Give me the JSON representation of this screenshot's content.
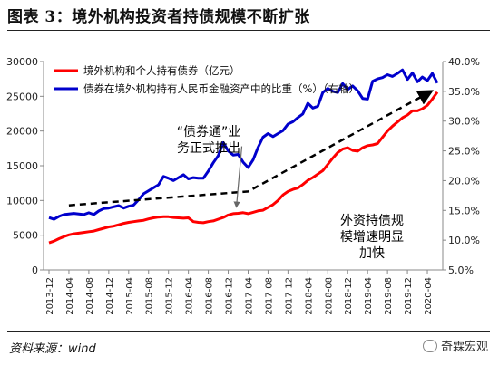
{
  "header": {
    "title": "图表 3：境外机构投资者持债规模不断扩张"
  },
  "footer": {
    "source": "资料来源：wind",
    "brand": "奇霖宏观"
  },
  "chart_data": {
    "type": "line",
    "x": [
      "2013-12",
      "2014-01",
      "2014-02",
      "2014-03",
      "2014-04",
      "2014-05",
      "2014-06",
      "2014-07",
      "2014-08",
      "2014-09",
      "2014-10",
      "2014-11",
      "2014-12",
      "2015-01",
      "2015-02",
      "2015-03",
      "2015-04",
      "2015-05",
      "2015-06",
      "2015-07",
      "2015-08",
      "2015-09",
      "2015-10",
      "2015-11",
      "2015-12",
      "2016-01",
      "2016-02",
      "2016-03",
      "2016-04",
      "2016-05",
      "2016-06",
      "2016-07",
      "2016-08",
      "2016-09",
      "2016-10",
      "2016-11",
      "2016-12",
      "2017-01",
      "2017-02",
      "2017-03",
      "2017-04",
      "2017-05",
      "2017-06",
      "2017-07",
      "2017-08",
      "2017-09",
      "2017-10",
      "2017-11",
      "2017-12",
      "2018-01",
      "2018-02",
      "2018-03",
      "2018-04",
      "2018-05",
      "2018-06",
      "2018-07",
      "2018-08",
      "2018-09",
      "2018-10",
      "2018-11",
      "2018-12",
      "2019-01",
      "2019-02",
      "2019-03",
      "2019-04",
      "2019-05",
      "2019-06",
      "2019-07",
      "2019-08",
      "2019-09",
      "2019-10",
      "2019-11",
      "2019-12",
      "2020-01",
      "2020-02",
      "2020-03",
      "2020-04",
      "2020-05",
      "2020-06"
    ],
    "x_tick_labels": [
      "2013-12",
      "2014-04",
      "2014-08",
      "2014-12",
      "2015-04",
      "2015-08",
      "2015-12",
      "2016-04",
      "2016-08",
      "2016-12",
      "2017-04",
      "2017-08",
      "2017-12",
      "2018-04",
      "2018-08",
      "2018-12",
      "2019-04",
      "2019-08",
      "2019-12",
      "2020-04"
    ],
    "series": [
      {
        "name": "境外机构和个人持有债券（亿元）",
        "axis": "left",
        "color": "#ff0000",
        "values": [
          3900,
          4150,
          4500,
          4800,
          5050,
          5200,
          5300,
          5400,
          5500,
          5600,
          5800,
          6000,
          6200,
          6300,
          6500,
          6700,
          6850,
          6950,
          7050,
          7150,
          7350,
          7500,
          7600,
          7650,
          7650,
          7550,
          7500,
          7450,
          7500,
          6950,
          6850,
          6800,
          6950,
          7050,
          7300,
          7550,
          7900,
          8100,
          8150,
          8250,
          8100,
          8300,
          8500,
          8600,
          9000,
          9400,
          10000,
          10800,
          11300,
          11600,
          11800,
          12300,
          12900,
          13300,
          13800,
          14300,
          15200,
          16100,
          16900,
          17400,
          17600,
          17200,
          17100,
          17600,
          17900,
          18000,
          18200,
          19100,
          20000,
          20700,
          21300,
          21900,
          22300,
          22900,
          22900,
          23200,
          23700,
          24600,
          25600
        ]
      },
      {
        "name": "债券在境外机构持有人民币金融资产中的比重（%）（右轴）",
        "axis": "right",
        "color": "#0000cc",
        "values": [
          13.8,
          13.5,
          14.0,
          14.3,
          14.4,
          14.5,
          14.4,
          14.3,
          14.6,
          14.3,
          14.9,
          15.3,
          15.4,
          15.6,
          15.8,
          15.4,
          15.7,
          15.9,
          16.8,
          17.8,
          18.3,
          18.8,
          19.3,
          20.7,
          20.4,
          20.0,
          20.5,
          21.0,
          20.3,
          20.5,
          20.4,
          20.4,
          21.6,
          23.0,
          24.2,
          26.4,
          25.0,
          24.3,
          24.4,
          23.1,
          22.2,
          23.5,
          25.6,
          27.3,
          27.9,
          27.4,
          27.9,
          28.4,
          29.5,
          29.9,
          30.6,
          31.2,
          33.0,
          32.2,
          32.5,
          34.8,
          35.5,
          35.0,
          34.8,
          36.3,
          35.3,
          35.9,
          35.1,
          33.8,
          33.7,
          36.7,
          37.1,
          37.3,
          37.8,
          37.5,
          38.0,
          38.6,
          37.0,
          38.1,
          36.6,
          37.4,
          36.8,
          38.0,
          36.4
        ]
      }
    ],
    "y_left": {
      "min": 0,
      "max": 30000,
      "ticks": [
        0,
        5000,
        10000,
        15000,
        20000,
        25000,
        30000
      ]
    },
    "y_right": {
      "min": 5.0,
      "max": 40.0,
      "ticks": [
        "5.0%",
        "10.0%",
        "15.0%",
        "20.0%",
        "25.0%",
        "30.0%",
        "35.0%",
        "40.0%"
      ]
    },
    "annotations": [
      {
        "text_lines": [
          "“债券通”业",
          "务正式推出"
        ]
      },
      {
        "text_lines": [
          "外资持债规",
          "模增速明显",
          "加快"
        ]
      }
    ],
    "trend_arrows": [
      {
        "points": [
          [
            "2014-04",
            9300
          ],
          [
            "2017-04",
            11300
          ],
          [
            "2020-05",
            25800
          ]
        ],
        "color": "#000000",
        "style": "dashed"
      }
    ],
    "callout_arrow": {
      "from_x": "2017-02",
      "from_y": 17800,
      "to_x": "2017-02",
      "to_y": 9000
    },
    "legend_placement": "top-left",
    "grid": false
  }
}
